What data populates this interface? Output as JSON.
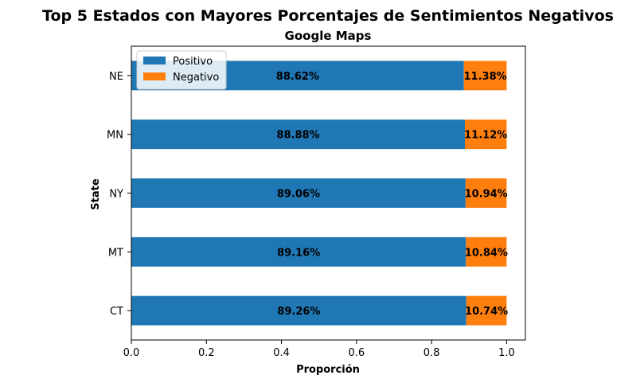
{
  "chart_data": {
    "type": "bar",
    "orientation": "horizontal",
    "stacked": true,
    "title": "Top 5 Estados con Mayores Porcentajes de Sentimientos Negativos",
    "subtitle": "Google Maps",
    "xlabel": "Proporción",
    "ylabel": "State",
    "xlim": [
      0,
      1.05
    ],
    "xticks": [
      "0.0",
      "0.2",
      "0.4",
      "0.6",
      "0.8",
      "1.0"
    ],
    "categories": [
      "NE",
      "MN",
      "NY",
      "MT",
      "CT"
    ],
    "series": [
      {
        "name": "Positivo",
        "color": "#1f77b4",
        "values": [
          0.8862,
          0.8888,
          0.8906,
          0.8916,
          0.8926
        ],
        "labels": [
          "88.62%",
          "88.88%",
          "89.06%",
          "89.16%",
          "89.26%"
        ]
      },
      {
        "name": "Negativo",
        "color": "#ff7f0e",
        "values": [
          0.1138,
          0.1112,
          0.1094,
          0.1084,
          0.1074
        ],
        "labels": [
          "11.38%",
          "11.12%",
          "10.94%",
          "10.84%",
          "10.74%"
        ]
      }
    ],
    "legend": "top-left",
    "grid": false
  }
}
